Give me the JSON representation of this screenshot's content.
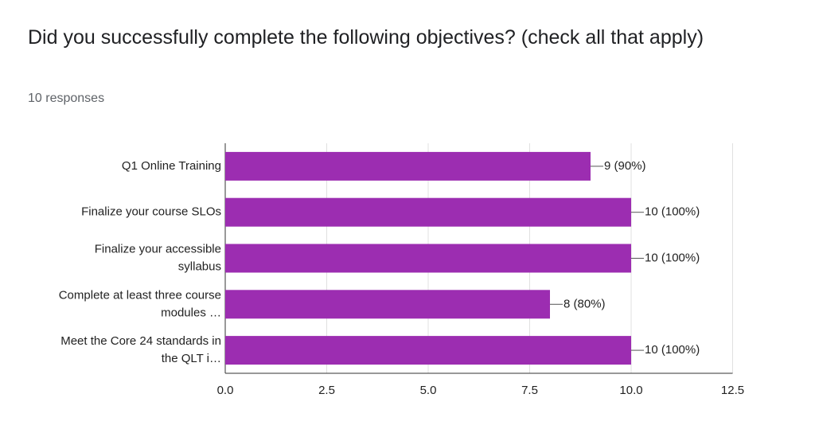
{
  "chart_data": {
    "type": "bar",
    "orientation": "horizontal",
    "title": "Did you successfully complete the following objectives? (check all that apply)",
    "subtitle": "10 responses",
    "categories": [
      [
        "Q1 Online Training"
      ],
      [
        "Finalize your course SLOs"
      ],
      [
        "Finalize your accessible",
        "syllabus"
      ],
      [
        "Complete at least three course",
        "modules …"
      ],
      [
        "Meet the Core 24 standards in",
        "the QLT i…"
      ]
    ],
    "values": [
      9,
      10,
      10,
      8,
      10
    ],
    "value_labels": [
      "9 (90%)",
      "10 (100%)",
      "10 (100%)",
      "8 (80%)",
      "10 (100%)"
    ],
    "color": "#9c2db1",
    "xlim": [
      0,
      12.5
    ],
    "xticks": [
      {
        "value": 0,
        "label": "0.0"
      },
      2.5,
      {
        "value": 5,
        "label": "5.0"
      },
      7.5,
      {
        "value": 10,
        "label": "10.0"
      },
      12.5
    ],
    "grid": true
  }
}
